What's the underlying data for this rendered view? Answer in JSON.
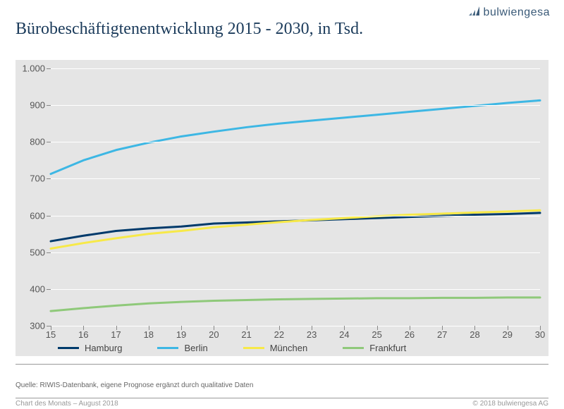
{
  "brand": {
    "name": "bulwiengesa"
  },
  "title": "Bürobeschäftigtenentwicklung 2015 - 2030, in Tsd.",
  "chart": {
    "type": "line",
    "background_color": "#e5e5e5",
    "grid_color": "#ffffff",
    "x": {
      "min": 15,
      "max": 30,
      "ticks": [
        15,
        16,
        17,
        18,
        19,
        20,
        21,
        22,
        23,
        24,
        25,
        26,
        27,
        28,
        29,
        30
      ]
    },
    "y": {
      "min": 300,
      "max": 1000,
      "ticks": [
        300,
        400,
        500,
        600,
        700,
        800,
        900,
        1000
      ]
    },
    "yticks_formatted": [
      "300",
      "400",
      "500",
      "600",
      "700",
      "800",
      "900",
      "1.000"
    ],
    "line_width": 3,
    "label_fontsize": 13,
    "series": [
      {
        "name": "Hamburg",
        "color": "#003a6b",
        "values": [
          530,
          545,
          558,
          565,
          570,
          578,
          581,
          584,
          587,
          590,
          593,
          596,
          599,
          602,
          604,
          607
        ]
      },
      {
        "name": "Berlin",
        "color": "#3db7e4",
        "values": [
          713,
          750,
          778,
          798,
          815,
          828,
          840,
          850,
          858,
          866,
          874,
          882,
          890,
          898,
          906,
          913
        ]
      },
      {
        "name": "München",
        "color": "#f7e948",
        "values": [
          510,
          525,
          538,
          550,
          558,
          568,
          575,
          582,
          588,
          593,
          598,
          602,
          605,
          608,
          611,
          614
        ]
      },
      {
        "name": "Frankfurt",
        "color": "#8fc97a",
        "values": [
          340,
          348,
          355,
          361,
          365,
          368,
          370,
          372,
          373,
          374,
          375,
          375,
          376,
          376,
          377,
          377
        ]
      }
    ]
  },
  "source": "Quelle: RIWIS-Datenbank, eigene Prognose ergänzt durch qualitative Daten",
  "footer_left": "Chart des Monats – August 2018",
  "footer_right": "© 2018 bulwiengesa AG"
}
